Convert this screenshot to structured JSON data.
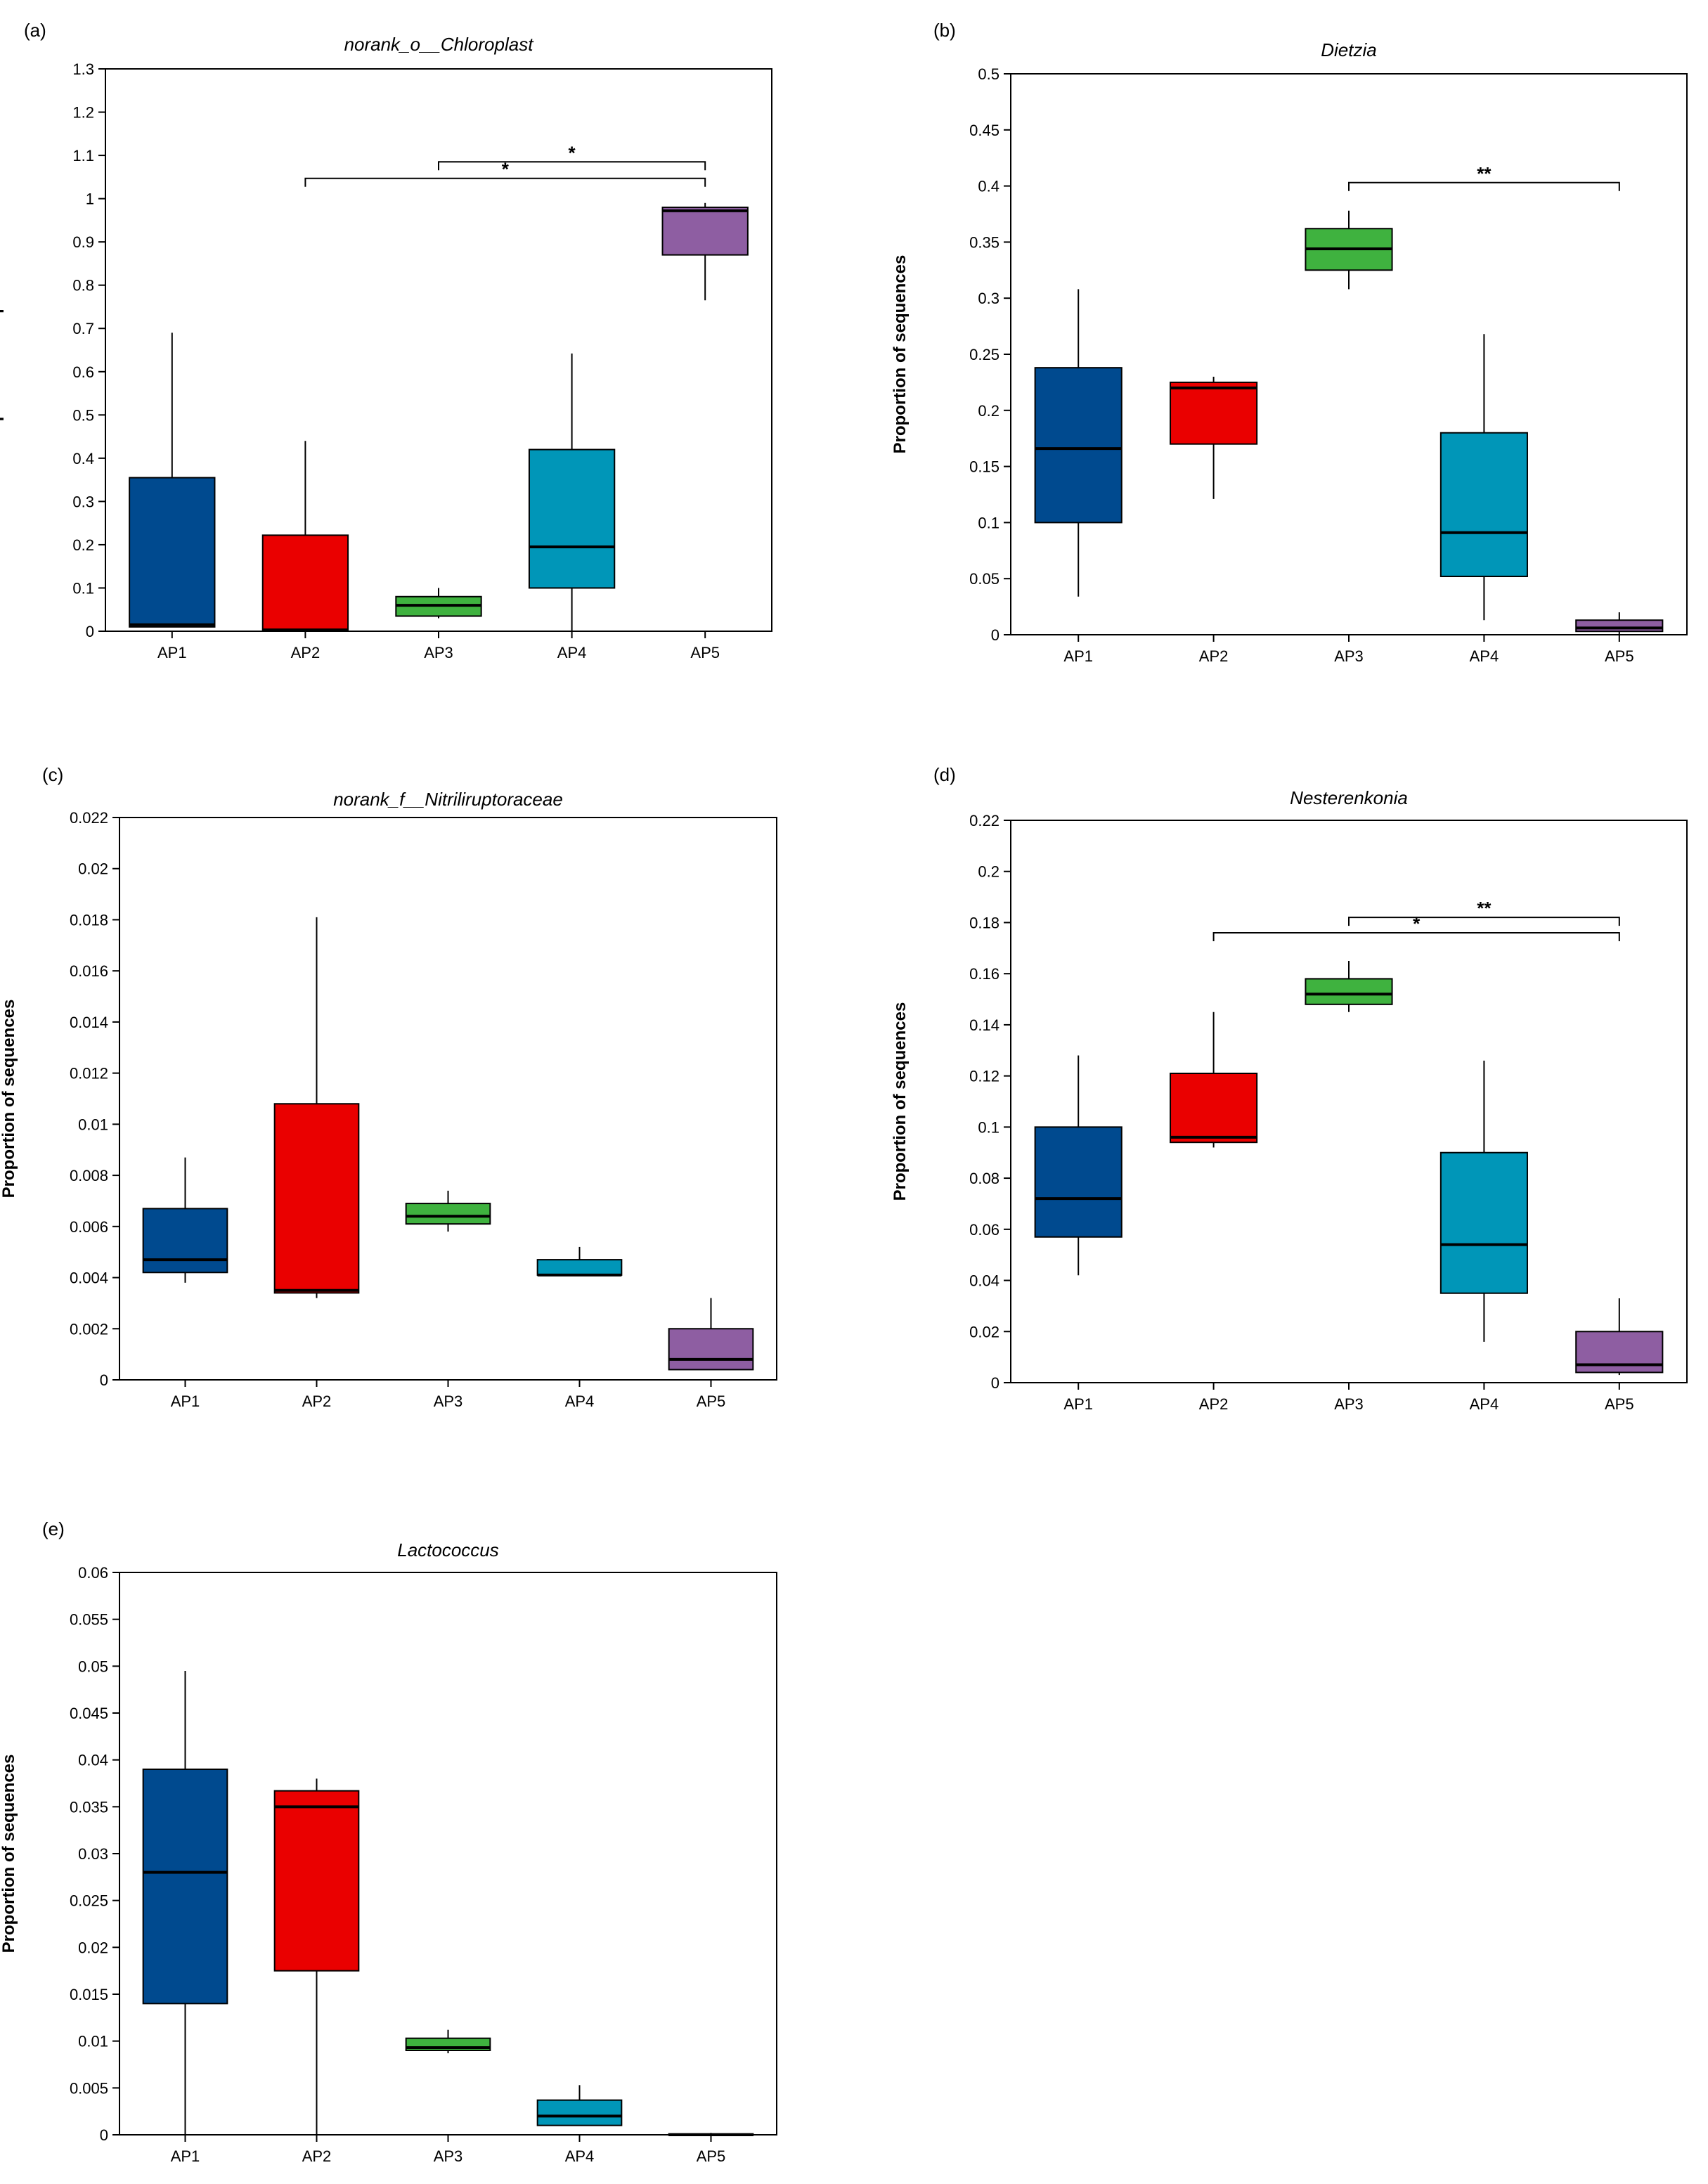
{
  "colors": {
    "AP1": "#004a8f",
    "AP2": "#ea0000",
    "AP3": "#3fb23f",
    "AP4": "#0096b8",
    "AP5": "#8e5ea2",
    "median": "#000000",
    "axis": "#000000"
  },
  "chart_data": [
    {
      "panel": "(a)",
      "type": "boxplot",
      "title": "norank_o__Chloroplast",
      "ylabel": "Proportion of sequences",
      "ylim": [
        0,
        1.3
      ],
      "yticks": [
        0,
        0.1,
        0.2,
        0.3,
        0.4,
        0.5,
        0.6,
        0.7,
        0.8,
        0.9,
        1,
        1.1,
        1.2,
        1.3
      ],
      "ytick_labels": [
        "0",
        "0.1",
        "0.2",
        "0.3",
        "0.4",
        "0.5",
        "0.6",
        "0.7",
        "0.8",
        "0.9",
        "1",
        "1.1",
        "1.2",
        "1.3"
      ],
      "categories": [
        "AP1",
        "AP2",
        "AP3",
        "AP4",
        "AP5"
      ],
      "boxes": [
        {
          "whislo": 0.01,
          "q1": 0.01,
          "med": 0.015,
          "q3": 0.355,
          "whishi": 0.69
        },
        {
          "whislo": 0.0,
          "q1": 0.0,
          "med": 0.003,
          "q3": 0.222,
          "whishi": 0.44
        },
        {
          "whislo": 0.03,
          "q1": 0.035,
          "med": 0.06,
          "q3": 0.08,
          "whishi": 0.1
        },
        {
          "whislo": 0.0,
          "q1": 0.1,
          "med": 0.195,
          "q3": 0.42,
          "whishi": 0.642
        },
        {
          "whislo": 0.765,
          "q1": 0.87,
          "med": 0.972,
          "q3": 0.98,
          "whishi": 0.99
        }
      ],
      "significance": [
        {
          "from": "AP3",
          "to": "AP5",
          "level": 1.085,
          "label": "*"
        },
        {
          "from": "AP2",
          "to": "AP5",
          "level": 1.047,
          "label": "*"
        }
      ]
    },
    {
      "panel": "(b)",
      "type": "boxplot",
      "title": "Dietzia",
      "ylabel": "Proportion of sequences",
      "ylim": [
        0,
        0.5
      ],
      "yticks": [
        0,
        0.05,
        0.1,
        0.15,
        0.2,
        0.25,
        0.3,
        0.35,
        0.4,
        0.45,
        0.5
      ],
      "ytick_labels": [
        "0",
        "0.05",
        "0.1",
        "0.15",
        "0.2",
        "0.25",
        "0.3",
        "0.35",
        "0.4",
        "0.45",
        "0.5"
      ],
      "categories": [
        "AP1",
        "AP2",
        "AP3",
        "AP4",
        "AP5"
      ],
      "boxes": [
        {
          "whislo": 0.034,
          "q1": 0.1,
          "med": 0.166,
          "q3": 0.238,
          "whishi": 0.308
        },
        {
          "whislo": 0.121,
          "q1": 0.17,
          "med": 0.22,
          "q3": 0.225,
          "whishi": 0.23
        },
        {
          "whislo": 0.308,
          "q1": 0.325,
          "med": 0.344,
          "q3": 0.362,
          "whishi": 0.378
        },
        {
          "whislo": 0.013,
          "q1": 0.052,
          "med": 0.091,
          "q3": 0.18,
          "whishi": 0.268
        },
        {
          "whislo": 0.0,
          "q1": 0.003,
          "med": 0.006,
          "q3": 0.013,
          "whishi": 0.02
        }
      ],
      "significance": [
        {
          "from": "AP3",
          "to": "AP5",
          "level": 0.403,
          "label": "**"
        }
      ]
    },
    {
      "panel": "(c)",
      "type": "boxplot",
      "title": "norank_f__Nitriliruptoraceae",
      "ylabel": "Proportion of sequences",
      "ylim": [
        0,
        0.022
      ],
      "yticks": [
        0,
        0.002,
        0.004,
        0.006,
        0.008,
        0.01,
        0.012,
        0.014,
        0.016,
        0.018,
        0.02,
        0.022
      ],
      "ytick_labels": [
        "0",
        "0.002",
        "0.004",
        "0.006",
        "0.008",
        "0.01",
        "0.012",
        "0.014",
        "0.016",
        "0.018",
        "0.02",
        "0.022"
      ],
      "categories": [
        "AP1",
        "AP2",
        "AP3",
        "AP4",
        "AP5"
      ],
      "boxes": [
        {
          "whislo": 0.0038,
          "q1": 0.0042,
          "med": 0.0047,
          "q3": 0.0067,
          "whishi": 0.0087
        },
        {
          "whislo": 0.0032,
          "q1": 0.0034,
          "med": 0.0035,
          "q3": 0.0108,
          "whishi": 0.0181
        },
        {
          "whislo": 0.0058,
          "q1": 0.0061,
          "med": 0.0064,
          "q3": 0.0069,
          "whishi": 0.0074
        },
        {
          "whislo": 0.0041,
          "q1": 0.0041,
          "med": 0.0041,
          "q3": 0.0047,
          "whishi": 0.0052
        },
        {
          "whislo": 0.0004,
          "q1": 0.0004,
          "med": 0.0008,
          "q3": 0.002,
          "whishi": 0.0032
        }
      ],
      "significance": []
    },
    {
      "panel": "(d)",
      "type": "boxplot",
      "title": "Nesterenkonia",
      "ylabel": "Proportion of sequences",
      "ylim": [
        0,
        0.22
      ],
      "yticks": [
        0,
        0.02,
        0.04,
        0.06,
        0.08,
        0.1,
        0.12,
        0.14,
        0.16,
        0.18,
        0.2,
        0.22
      ],
      "ytick_labels": [
        "0",
        "0.02",
        "0.04",
        "0.06",
        "0.08",
        "0.1",
        "0.12",
        "0.14",
        "0.16",
        "0.18",
        "0.2",
        "0.22"
      ],
      "categories": [
        "AP1",
        "AP2",
        "AP3",
        "AP4",
        "AP5"
      ],
      "boxes": [
        {
          "whislo": 0.042,
          "q1": 0.057,
          "med": 0.072,
          "q3": 0.1,
          "whishi": 0.128
        },
        {
          "whislo": 0.092,
          "q1": 0.094,
          "med": 0.096,
          "q3": 0.121,
          "whishi": 0.145
        },
        {
          "whislo": 0.145,
          "q1": 0.148,
          "med": 0.152,
          "q3": 0.158,
          "whishi": 0.165
        },
        {
          "whislo": 0.016,
          "q1": 0.035,
          "med": 0.054,
          "q3": 0.09,
          "whishi": 0.126
        },
        {
          "whislo": 0.003,
          "q1": 0.004,
          "med": 0.007,
          "q3": 0.02,
          "whishi": 0.033
        }
      ],
      "significance": [
        {
          "from": "AP3",
          "to": "AP5",
          "level": 0.182,
          "label": "**"
        },
        {
          "from": "AP2",
          "to": "AP5",
          "level": 0.176,
          "label": "*"
        }
      ]
    },
    {
      "panel": "(e)",
      "type": "boxplot",
      "title": "Lactococcus",
      "ylabel": "Proportion of sequences",
      "ylim": [
        0,
        0.06
      ],
      "yticks": [
        0,
        0.005,
        0.01,
        0.015,
        0.02,
        0.025,
        0.03,
        0.035,
        0.04,
        0.045,
        0.05,
        0.055,
        0.06
      ],
      "ytick_labels": [
        "0",
        "0.005",
        "0.01",
        "0.015",
        "0.02",
        "0.025",
        "0.03",
        "0.035",
        "0.04",
        "0.045",
        "0.05",
        "0.055",
        "0.06"
      ],
      "categories": [
        "AP1",
        "AP2",
        "AP3",
        "AP4",
        "AP5"
      ],
      "boxes": [
        {
          "whislo": 0.0,
          "q1": 0.014,
          "med": 0.028,
          "q3": 0.039,
          "whishi": 0.0495
        },
        {
          "whislo": 0.0,
          "q1": 0.0175,
          "med": 0.035,
          "q3": 0.0367,
          "whishi": 0.038
        },
        {
          "whislo": 0.0087,
          "q1": 0.009,
          "med": 0.0093,
          "q3": 0.0103,
          "whishi": 0.0112
        },
        {
          "whislo": 0.001,
          "q1": 0.001,
          "med": 0.002,
          "q3": 0.0037,
          "whishi": 0.0053
        },
        {
          "whislo": 0.0,
          "q1": 0.0,
          "med": 0.0,
          "q3": 0.0001,
          "whishi": 0.0002
        }
      ],
      "significance": []
    }
  ]
}
